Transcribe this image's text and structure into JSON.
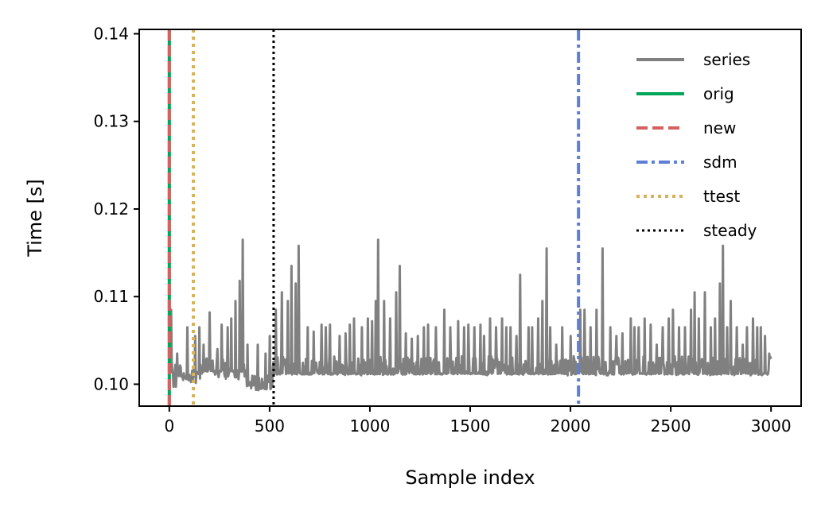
{
  "chart_data": {
    "type": "line",
    "xlabel": "Sample index",
    "ylabel": "Time [s]",
    "xlim": [
      -150,
      3150
    ],
    "ylim": [
      0.0975,
      0.1405
    ],
    "xticks": [
      {
        "value": 0,
        "label": "0"
      },
      {
        "value": 500,
        "label": "500"
      },
      {
        "value": 1000,
        "label": "1000"
      },
      {
        "value": 1500,
        "label": "1500"
      },
      {
        "value": 2000,
        "label": "2000"
      },
      {
        "value": 2500,
        "label": "2500"
      },
      {
        "value": 3000,
        "label": "3000"
      }
    ],
    "yticks": [
      {
        "value": 0.1,
        "label": "0.10"
      },
      {
        "value": 0.11,
        "label": "0.11"
      },
      {
        "value": 0.12,
        "label": "0.12"
      },
      {
        "value": 0.13,
        "label": "0.13"
      },
      {
        "value": 0.14,
        "label": "0.14"
      }
    ],
    "grid": false,
    "legend_position": "top-right",
    "series": [
      {
        "name": "series",
        "color": "#808080",
        "baseline": [
          [
            0,
            0.1015
          ],
          [
            100,
            0.1005
          ],
          [
            150,
            0.1015
          ],
          [
            380,
            0.1015
          ],
          [
            400,
            0.0995
          ],
          [
            510,
            0.0995
          ],
          [
            520,
            0.1012
          ],
          [
            3000,
            0.1012
          ]
        ],
        "band_low": [
          [
            0,
            0.0995
          ],
          [
            100,
            0.0995
          ],
          [
            150,
            0.1005
          ],
          [
            380,
            0.1005
          ],
          [
            390,
            0.0993
          ],
          [
            510,
            0.0993
          ],
          [
            520,
            0.101
          ],
          [
            3000,
            0.101
          ]
        ],
        "band_high": [
          [
            0,
            0.103
          ],
          [
            100,
            0.1025
          ],
          [
            150,
            0.103
          ],
          [
            380,
            0.103
          ],
          [
            390,
            0.101
          ],
          [
            510,
            0.101
          ],
          [
            520,
            0.1032
          ],
          [
            3000,
            0.1032
          ]
        ],
        "spikes": [
          [
            10,
            0.1085
          ],
          [
            40,
            0.1035
          ],
          [
            90,
            0.1065
          ],
          [
            130,
            0.1055
          ],
          [
            150,
            0.1065
          ],
          [
            170,
            0.1045
          ],
          [
            200,
            0.1082
          ],
          [
            240,
            0.104
          ],
          [
            260,
            0.1068
          ],
          [
            290,
            0.1065
          ],
          [
            310,
            0.1075
          ],
          [
            330,
            0.1095
          ],
          [
            350,
            0.1118
          ],
          [
            365,
            0.1165
          ],
          [
            390,
            0.1045
          ],
          [
            440,
            0.1045
          ],
          [
            480,
            0.1035
          ],
          [
            500,
            0.1055
          ],
          [
            530,
            0.1085
          ],
          [
            560,
            0.1105
          ],
          [
            590,
            0.1095
          ],
          [
            610,
            0.1135
          ],
          [
            630,
            0.1115
          ],
          [
            645,
            0.1158
          ],
          [
            690,
            0.1065
          ],
          [
            720,
            0.106
          ],
          [
            760,
            0.1068
          ],
          [
            780,
            0.1065
          ],
          [
            800,
            0.1068
          ],
          [
            850,
            0.1055
          ],
          [
            880,
            0.1058
          ],
          [
            900,
            0.1068
          ],
          [
            920,
            0.1075
          ],
          [
            960,
            0.1065
          ],
          [
            990,
            0.1075
          ],
          [
            1010,
            0.1072
          ],
          [
            1030,
            0.1095
          ],
          [
            1040,
            0.1165
          ],
          [
            1070,
            0.1095
          ],
          [
            1100,
            0.1075
          ],
          [
            1130,
            0.1105
          ],
          [
            1150,
            0.1135
          ],
          [
            1180,
            0.1058
          ],
          [
            1210,
            0.1052
          ],
          [
            1240,
            0.1055
          ],
          [
            1270,
            0.1065
          ],
          [
            1290,
            0.1068
          ],
          [
            1330,
            0.1065
          ],
          [
            1370,
            0.1085
          ],
          [
            1400,
            0.1065
          ],
          [
            1440,
            0.1072
          ],
          [
            1470,
            0.1065
          ],
          [
            1490,
            0.1068
          ],
          [
            1520,
            0.1065
          ],
          [
            1550,
            0.1068
          ],
          [
            1570,
            0.1055
          ],
          [
            1600,
            0.1075
          ],
          [
            1630,
            0.1065
          ],
          [
            1660,
            0.1075
          ],
          [
            1680,
            0.1065
          ],
          [
            1700,
            0.1065
          ],
          [
            1730,
            0.1055
          ],
          [
            1750,
            0.1125
          ],
          [
            1790,
            0.1065
          ],
          [
            1810,
            0.1065
          ],
          [
            1840,
            0.1075
          ],
          [
            1860,
            0.1095
          ],
          [
            1880,
            0.1155
          ],
          [
            1900,
            0.1065
          ],
          [
            1930,
            0.1045
          ],
          [
            1960,
            0.1065
          ],
          [
            2000,
            0.1055
          ],
          [
            2050,
            0.1085
          ],
          [
            2070,
            0.1085
          ],
          [
            2100,
            0.1065
          ],
          [
            2130,
            0.1085
          ],
          [
            2160,
            0.1155
          ],
          [
            2200,
            0.1065
          ],
          [
            2230,
            0.1055
          ],
          [
            2260,
            0.1058
          ],
          [
            2300,
            0.1075
          ],
          [
            2320,
            0.1065
          ],
          [
            2340,
            0.1065
          ],
          [
            2370,
            0.1075
          ],
          [
            2400,
            0.1068
          ],
          [
            2430,
            0.1045
          ],
          [
            2460,
            0.1065
          ],
          [
            2490,
            0.1075
          ],
          [
            2510,
            0.1085
          ],
          [
            2540,
            0.1065
          ],
          [
            2570,
            0.1065
          ],
          [
            2600,
            0.1085
          ],
          [
            2620,
            0.1105
          ],
          [
            2640,
            0.1075
          ],
          [
            2670,
            0.1105
          ],
          [
            2700,
            0.1065
          ],
          [
            2720,
            0.1075
          ],
          [
            2745,
            0.1115
          ],
          [
            2760,
            0.1158
          ],
          [
            2780,
            0.1065
          ],
          [
            2800,
            0.1095
          ],
          [
            2830,
            0.1065
          ],
          [
            2860,
            0.1045
          ],
          [
            2880,
            0.1065
          ],
          [
            2910,
            0.1075
          ],
          [
            2930,
            0.1065
          ],
          [
            2950,
            0.1065
          ],
          [
            2970,
            0.1055
          ],
          [
            2990,
            0.1035
          ]
        ]
      },
      {
        "name": "orig",
        "color": "#00a65a",
        "style": "solid",
        "x": 0
      },
      {
        "name": "new",
        "color": "#d65f5f",
        "style": "dashed",
        "x": 0
      },
      {
        "name": "sdm",
        "color": "#5d7fd6",
        "style": "dashdot",
        "x": 2040
      },
      {
        "name": "ttest",
        "color": "#d6b25a",
        "style": "dotted",
        "x": 120
      },
      {
        "name": "steady",
        "color": "#000000",
        "style": "dotted-fine",
        "x": 520
      }
    ]
  }
}
